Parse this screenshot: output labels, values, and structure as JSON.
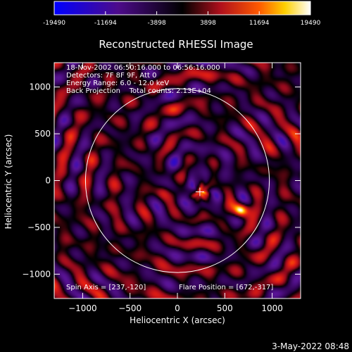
{
  "colorbar": {
    "ticks": [
      "-19490",
      "-11694",
      "-3898",
      "3898",
      "11694",
      "19490"
    ],
    "range": [
      -19490,
      19490
    ]
  },
  "plot": {
    "title": "Reconstructed RHESSI Image",
    "info_lines": [
      "18-Nov-2002 06:50:16.000 to 06:56:16.000",
      "Detectors: 7F 8F 9F, Att 0",
      "Energy Range: 6.0 - 12.0 keV",
      "Back Projection    Total counts: 2.13E+04"
    ],
    "spin_axis": "Spin Axis = [237,-120]",
    "flare_position": "Flare Position = [672,-317]",
    "footer_date": "3-May-2022 08:48"
  },
  "chart_data": {
    "type": "heatmap",
    "title": "Reconstructed RHESSI Image",
    "xlabel": "Heliocentric X (arcsec)",
    "ylabel": "Heliocentric Y (arcsec)",
    "xlim": [
      -1300,
      1300
    ],
    "ylim": [
      -1260,
      1260
    ],
    "x_ticks": [
      {
        "value": -1000,
        "label": "−1000"
      },
      {
        "value": -500,
        "label": "−500"
      },
      {
        "value": 0,
        "label": "0"
      },
      {
        "value": 500,
        "label": "500"
      },
      {
        "value": 1000,
        "label": "1000"
      }
    ],
    "y_ticks": [
      {
        "value": 1000,
        "label": "1000"
      },
      {
        "value": 500,
        "label": "500"
      },
      {
        "value": 0,
        "label": "0"
      },
      {
        "value": -500,
        "label": "−500"
      },
      {
        "value": -1000,
        "label": "−1000"
      }
    ],
    "solar_disk": {
      "center": [
        0,
        0
      ],
      "radius_arcsec": 970
    },
    "spin_axis": [
      237,
      -120
    ],
    "flare_position": [
      672,
      -317
    ],
    "sources": [
      {
        "x": 672,
        "y": -317,
        "peak": 19490
      },
      {
        "x": 270,
        "y": -120,
        "peak": 12000
      },
      {
        "x": -150,
        "y": -130,
        "peak": 7000
      }
    ],
    "colors": {
      "low": "#0000ff",
      "mid": "#000000",
      "high": "#ffffff"
    }
  }
}
